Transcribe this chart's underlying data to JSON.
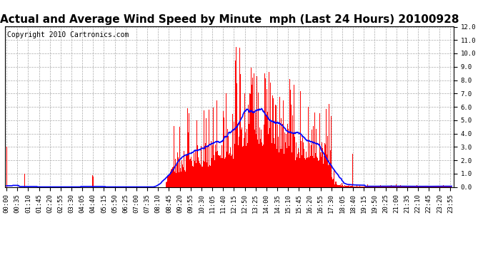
{
  "title": "Actual and Average Wind Speed by Minute  mph (Last 24 Hours) 20100928",
  "copyright": "Copyright 2010 Cartronics.com",
  "ylim": [
    0.0,
    12.0
  ],
  "yticks": [
    0.0,
    1.0,
    2.0,
    3.0,
    4.0,
    5.0,
    6.0,
    7.0,
    8.0,
    9.0,
    10.0,
    11.0,
    12.0
  ],
  "bar_color": "#ff0000",
  "line_color": "#0000ff",
  "bg_color": "#ffffff",
  "grid_color": "#aaaaaa",
  "title_color": "#000000",
  "title_fontsize": 11,
  "copyright_fontsize": 7,
  "tick_fontsize": 6.5,
  "n_minutes": 1440,
  "x_tick_interval": 35,
  "x_tick_labels": [
    "00:00",
    "00:35",
    "01:10",
    "01:45",
    "02:20",
    "02:55",
    "03:30",
    "04:05",
    "04:40",
    "05:15",
    "05:50",
    "06:25",
    "07:00",
    "07:35",
    "08:10",
    "08:45",
    "09:20",
    "09:55",
    "10:30",
    "11:05",
    "11:40",
    "12:15",
    "12:50",
    "13:25",
    "14:00",
    "14:35",
    "15:10",
    "15:45",
    "16:20",
    "16:55",
    "17:30",
    "18:05",
    "18:40",
    "19:15",
    "19:50",
    "20:25",
    "21:00",
    "21:35",
    "22:10",
    "22:45",
    "23:20",
    "23:55"
  ]
}
